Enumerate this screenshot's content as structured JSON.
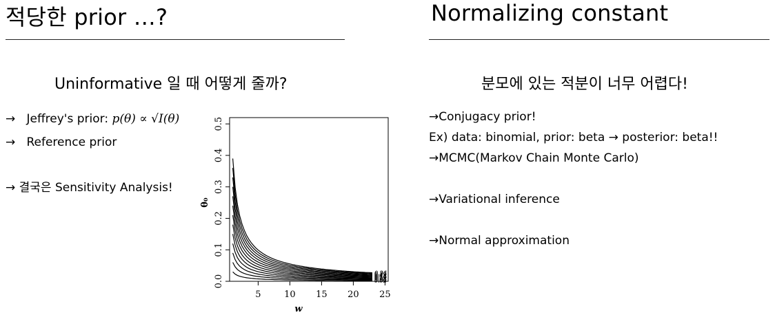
{
  "left": {
    "title": "적당한 prior …?",
    "subtitle": "Uninformative 일 때 어떻게 줄까?",
    "bullets": [
      {
        "arrow": "→",
        "text": "Jeffrey's prior: ",
        "math": "p(θ) ∝ √I(θ)"
      },
      {
        "arrow": "→",
        "text": "Reference prior"
      },
      {
        "arrow": "→",
        "text": "결국은 Sensitivity Analysis!"
      }
    ]
  },
  "right": {
    "title": "Normalizing constant",
    "subtitle": "분모에 있는 적분이 너무 어렵다!",
    "lines": [
      "→Conjugacy prior!",
      "Ex) data: binomial, prior: beta → posterior: beta!!",
      "→MCMC(Markov Chain Monte Carlo)",
      "→Variational inference",
      "→Normal approximation"
    ]
  },
  "chart_data": {
    "type": "line",
    "title": "",
    "xlabel": "w",
    "ylabel": "θ₀",
    "xlim": [
      0.5,
      25.5
    ],
    "ylim": [
      0,
      0.52
    ],
    "xticks": [
      5,
      10,
      15,
      20,
      25
    ],
    "yticks": [
      0.0,
      0.1,
      0.2,
      0.3,
      0.4,
      0.5
    ],
    "ytick_labels": [
      "0.0",
      "0.1",
      "0.2",
      "0.3",
      "0.4",
      "0.5"
    ],
    "grid": false,
    "contour_levels": [
      0.02,
      0.04,
      0.06,
      0.08,
      0.1,
      0.12,
      0.14,
      0.16,
      0.18,
      0.2,
      0.22,
      0.24,
      0.26
    ],
    "contour_labels": [
      "0.02",
      "0.04",
      "0.06",
      "0.08",
      "0.1",
      "0.12",
      "0.14",
      "0.16",
      "0.18",
      "0.2",
      "0.22",
      "0.24",
      "0.26"
    ],
    "contour_model": "theta0 * w^0.85 ≈ 1.5 * level"
  }
}
